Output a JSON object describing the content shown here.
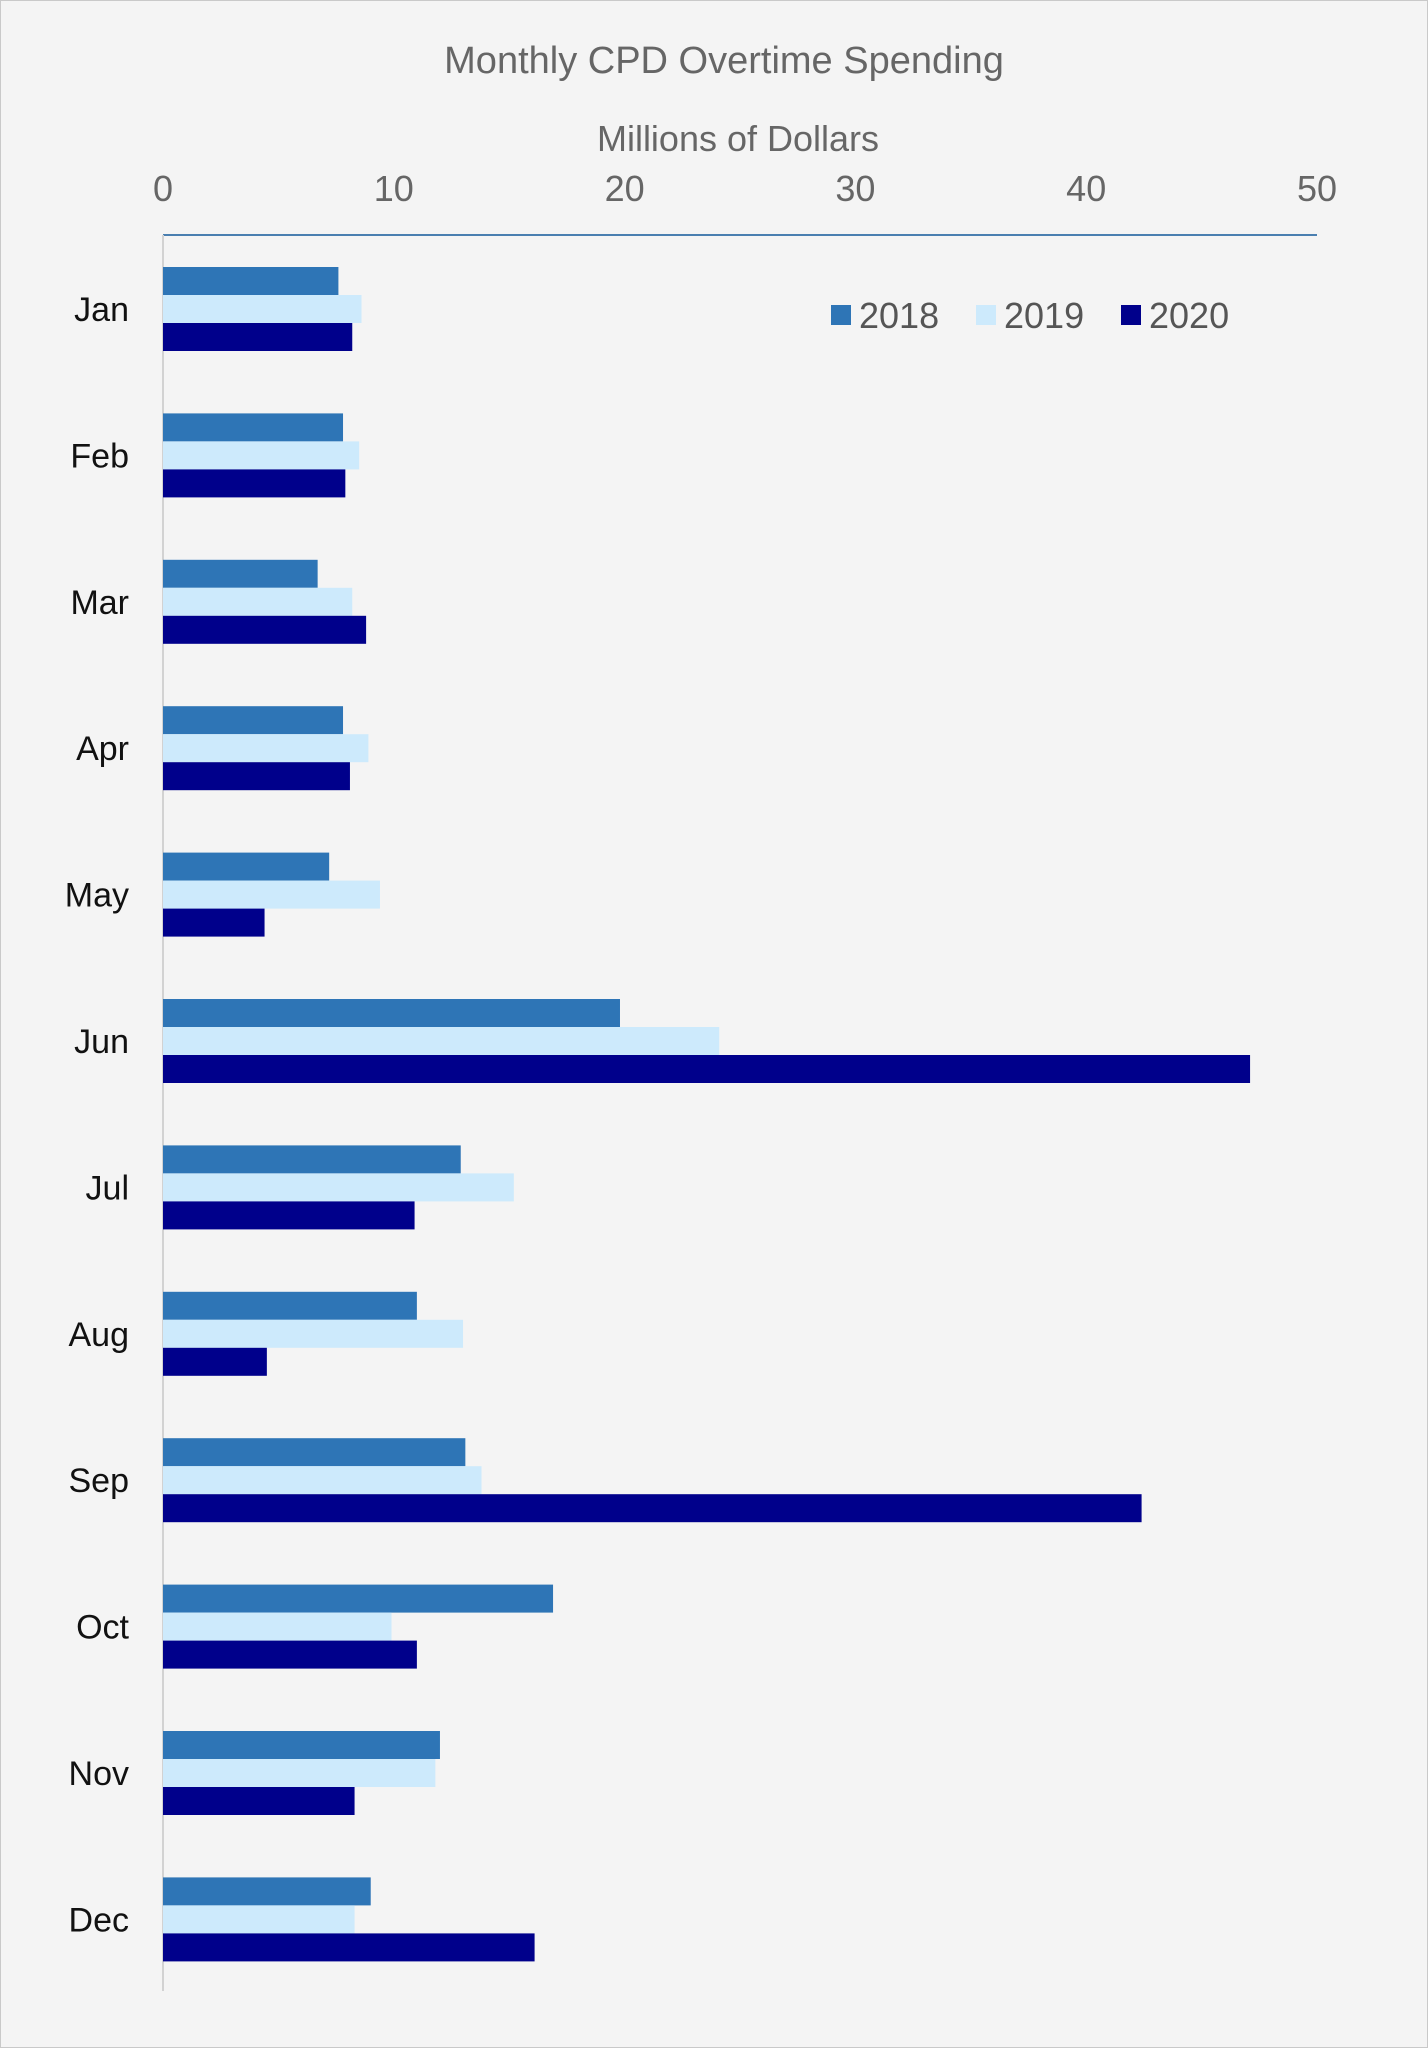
{
  "chart_data": {
    "type": "bar",
    "orientation": "horizontal",
    "title": "Monthly CPD Overtime Spending",
    "xlabel": "Millions of Dollars",
    "ylabel": "",
    "xlim": [
      0,
      50
    ],
    "x_ticks": [
      "0",
      "10",
      "20",
      "30",
      "40",
      "50"
    ],
    "x_axis_position": "top",
    "grid": false,
    "legend_position": "top-right",
    "categories": [
      "Jan",
      "Feb",
      "Mar",
      "Apr",
      "May",
      "Jun",
      "Jul",
      "Aug",
      "Sep",
      "Oct",
      "Nov",
      "Dec"
    ],
    "series": [
      {
        "name": "2018",
        "color": "#2e75b6",
        "values": [
          7.6,
          7.8,
          6.7,
          7.8,
          7.2,
          19.8,
          12.9,
          11.0,
          13.1,
          16.9,
          12.0,
          9.0
        ]
      },
      {
        "name": "2019",
        "color": "#cdeafc",
        "values": [
          8.6,
          8.5,
          8.2,
          8.9,
          9.4,
          24.1,
          15.2,
          13.0,
          13.8,
          9.9,
          11.8,
          8.3
        ]
      },
      {
        "name": "2020",
        "color": "#00008b",
        "values": [
          8.2,
          7.9,
          8.8,
          8.1,
          4.4,
          47.1,
          10.9,
          4.5,
          42.4,
          11.0,
          8.3,
          16.1
        ]
      }
    ]
  }
}
